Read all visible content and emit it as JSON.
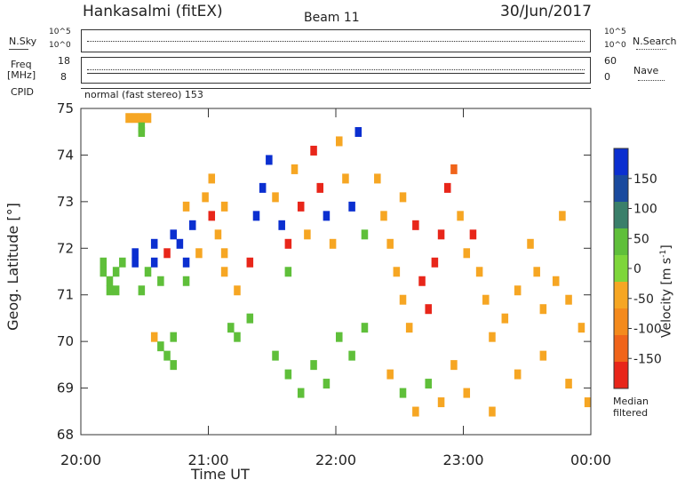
{
  "header": {
    "station": "Hankasalmi (fitEX)",
    "beam": "Beam 11",
    "date": "30/Jun/2017"
  },
  "aux_panels": {
    "nsky_label": "N.Sky",
    "nsky_ticks": [
      "10^5",
      "10^0"
    ],
    "nsearch_label": "N.Search",
    "nsearch_ticks": [
      "10^5",
      "10^0"
    ],
    "freq_label": "Freq",
    "freq_unit": "[MHz]",
    "freq_ticks": [
      "18",
      "8"
    ],
    "nave_label": "Nave",
    "nave_ticks": [
      "60",
      "0"
    ],
    "cpid_label": "CPID",
    "cpid_text": "normal (fast stereo) 153"
  },
  "colorbar": {
    "ticks": [
      "150",
      "100",
      "50",
      "0",
      "-50",
      "-100",
      "-150"
    ],
    "label_main": "Velocity [m s",
    "label_sup": "-1",
    "label_end": "]",
    "median_line1": "Median",
    "median_line2": "filtered",
    "colors": [
      "#0b2fd0",
      "#1a4a9e",
      "#3a7f6a",
      "#5fbf3a",
      "#7ed63a",
      "#f6a623",
      "#f48a1c",
      "#f0641a",
      "#e8261a"
    ]
  },
  "chart_data": {
    "type": "heatmap",
    "title": "Hankasalmi (fitEX)",
    "xlabel": "Time UT",
    "ylabel": "Geog. Latitude [°]",
    "x_ticks": [
      "20:00",
      "21:00",
      "22:00",
      "23:00",
      "00:00"
    ],
    "y_ticks": [
      "75",
      "74",
      "73",
      "72",
      "71",
      "70",
      "69",
      "68"
    ],
    "xlim_hours": [
      20,
      24
    ],
    "ylim": [
      68,
      75
    ],
    "color_scale": {
      "min": -200,
      "max": 200,
      "unit": "m s^-1"
    },
    "cells": [
      [
        20.35,
        74.9,
        -60
      ],
      [
        20.4,
        74.9,
        -60
      ],
      [
        20.45,
        74.9,
        -60
      ],
      [
        20.5,
        74.9,
        -60
      ],
      [
        20.45,
        74.7,
        50
      ],
      [
        20.45,
        74.6,
        50
      ],
      [
        20.15,
        71.8,
        60
      ],
      [
        20.15,
        71.6,
        60
      ],
      [
        20.2,
        71.4,
        40
      ],
      [
        20.2,
        71.2,
        40
      ],
      [
        20.25,
        71.6,
        60
      ],
      [
        20.25,
        71.2,
        40
      ],
      [
        20.3,
        71.8,
        60
      ],
      [
        20.4,
        72.0,
        170
      ],
      [
        20.4,
        71.8,
        170
      ],
      [
        20.45,
        71.2,
        60
      ],
      [
        20.5,
        71.6,
        60
      ],
      [
        20.55,
        71.8,
        170
      ],
      [
        20.55,
        72.2,
        170
      ],
      [
        20.6,
        71.4,
        60
      ],
      [
        20.65,
        72.0,
        -180
      ],
      [
        20.7,
        72.4,
        170
      ],
      [
        20.75,
        72.2,
        170
      ],
      [
        20.8,
        71.8,
        170
      ],
      [
        20.8,
        71.4,
        60
      ],
      [
        20.8,
        73.0,
        -60
      ],
      [
        20.55,
        70.2,
        -60
      ],
      [
        20.6,
        70.0,
        50
      ],
      [
        20.65,
        69.8,
        50
      ],
      [
        20.7,
        70.2,
        50
      ],
      [
        20.7,
        69.6,
        50
      ],
      [
        20.85,
        72.6,
        170
      ],
      [
        20.9,
        72.0,
        -60
      ],
      [
        20.95,
        73.2,
        -60
      ],
      [
        21.0,
        73.6,
        -60
      ],
      [
        21.0,
        72.8,
        -180
      ],
      [
        21.05,
        72.4,
        -60
      ],
      [
        21.1,
        72.0,
        -60
      ],
      [
        21.1,
        73.0,
        -60
      ],
      [
        21.1,
        71.6,
        -60
      ],
      [
        21.15,
        70.4,
        50
      ],
      [
        21.2,
        70.2,
        50
      ],
      [
        21.2,
        71.2,
        -60
      ],
      [
        21.3,
        70.6,
        50
      ],
      [
        21.3,
        71.8,
        -180
      ],
      [
        21.35,
        72.8,
        170
      ],
      [
        21.4,
        73.4,
        170
      ],
      [
        21.45,
        74.0,
        170
      ],
      [
        21.5,
        73.2,
        -60
      ],
      [
        21.55,
        72.6,
        170
      ],
      [
        21.6,
        72.2,
        -180
      ],
      [
        21.6,
        71.6,
        60
      ],
      [
        21.65,
        73.8,
        -60
      ],
      [
        21.7,
        73.0,
        -180
      ],
      [
        21.75,
        72.4,
        -60
      ],
      [
        21.8,
        74.2,
        -180
      ],
      [
        21.85,
        73.4,
        -180
      ],
      [
        21.9,
        72.8,
        170
      ],
      [
        21.95,
        72.2,
        -60
      ],
      [
        22.0,
        74.4,
        -60
      ],
      [
        22.05,
        73.6,
        -60
      ],
      [
        22.1,
        73.0,
        170
      ],
      [
        22.15,
        74.6,
        170
      ],
      [
        22.2,
        72.4,
        60
      ],
      [
        21.5,
        69.8,
        50
      ],
      [
        21.6,
        69.4,
        50
      ],
      [
        21.7,
        69.0,
        50
      ],
      [
        21.8,
        69.6,
        40
      ],
      [
        21.9,
        69.2,
        50
      ],
      [
        22.0,
        70.2,
        40
      ],
      [
        22.1,
        69.8,
        40
      ],
      [
        22.2,
        70.4,
        60
      ],
      [
        22.3,
        73.6,
        -60
      ],
      [
        22.35,
        72.8,
        -60
      ],
      [
        22.4,
        72.2,
        -60
      ],
      [
        22.45,
        71.6,
        -60
      ],
      [
        22.5,
        71.0,
        -60
      ],
      [
        22.5,
        73.2,
        -60
      ],
      [
        22.55,
        70.4,
        -60
      ],
      [
        22.6,
        72.6,
        -180
      ],
      [
        22.65,
        71.4,
        -180
      ],
      [
        22.7,
        70.8,
        -180
      ],
      [
        22.75,
        71.8,
        -180
      ],
      [
        22.8,
        72.4,
        -180
      ],
      [
        22.85,
        73.4,
        -180
      ],
      [
        22.9,
        73.8,
        -120
      ],
      [
        22.95,
        72.8,
        -60
      ],
      [
        23.0,
        72.0,
        -60
      ],
      [
        23.05,
        72.4,
        -180
      ],
      [
        23.1,
        71.6,
        -60
      ],
      [
        23.15,
        71.0,
        -60
      ],
      [
        23.2,
        70.2,
        -60
      ],
      [
        23.3,
        70.6,
        -60
      ],
      [
        23.4,
        71.2,
        -60
      ],
      [
        23.5,
        72.2,
        -60
      ],
      [
        23.55,
        71.6,
        -60
      ],
      [
        23.6,
        70.8,
        -60
      ],
      [
        23.7,
        71.4,
        -60
      ],
      [
        23.75,
        72.8,
        -60
      ],
      [
        23.8,
        71.0,
        -60
      ],
      [
        23.9,
        70.4,
        -60
      ],
      [
        22.4,
        69.4,
        -60
      ],
      [
        22.5,
        69.0,
        50
      ],
      [
        22.6,
        68.6,
        -60
      ],
      [
        22.7,
        69.2,
        50
      ],
      [
        22.8,
        68.8,
        -60
      ],
      [
        22.9,
        69.6,
        -60
      ],
      [
        23.0,
        69.0,
        -60
      ],
      [
        23.2,
        68.6,
        -60
      ],
      [
        23.4,
        69.4,
        -60
      ],
      [
        23.6,
        69.8,
        -60
      ],
      [
        23.8,
        69.2,
        -60
      ],
      [
        23.95,
        68.8,
        -60
      ]
    ]
  }
}
